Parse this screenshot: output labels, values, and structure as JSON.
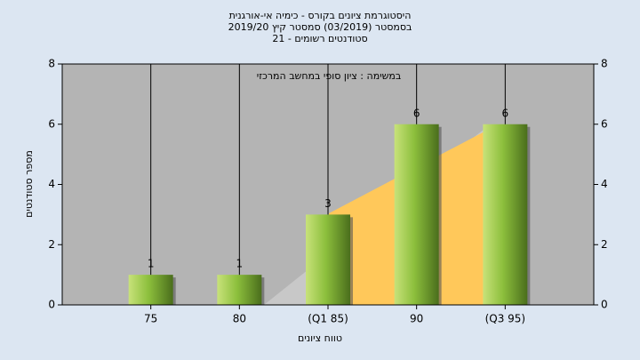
{
  "chart_data": {
    "type": "bar",
    "title": [
      "היסטוגרמת ציונים בקורס - כימיה אי-אורגנית",
      "בסמסטר  (03/2019)  סמסטר קיץ 2019/20",
      "סטודנטים רשומים - 21"
    ],
    "subtitle": "במשימה : ציון סופי במחשב המרכזי",
    "x_label": "טווח ציונים",
    "y_label": "מספר סטודנטים",
    "categories": [
      "75",
      "80",
      "(Q1 85)",
      "90",
      "(Q3 95)"
    ],
    "values": [
      1,
      1,
      3,
      6,
      6
    ],
    "color": "#8cbf3c",
    "ylim": [
      0,
      8
    ],
    "yticks": [
      0,
      2,
      4,
      6,
      8
    ]
  }
}
